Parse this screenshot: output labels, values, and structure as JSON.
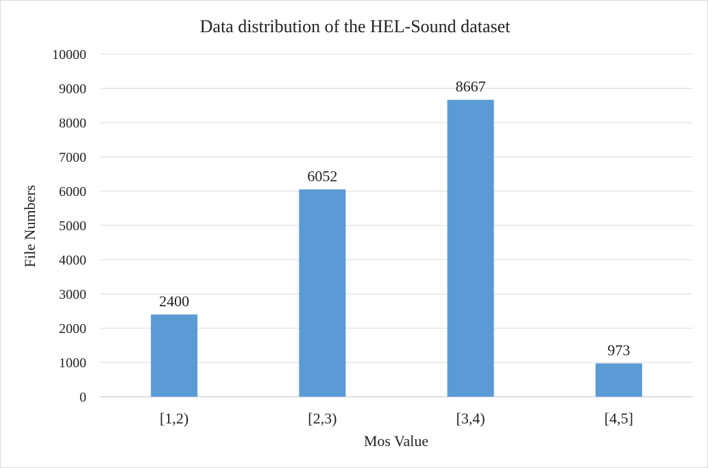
{
  "chart_data": {
    "type": "bar",
    "title": "Data distribution  of the HEL-Sound dataset",
    "xlabel": "Mos Value",
    "ylabel": "File Numbers",
    "categories": [
      "[1,2)",
      "[2,3)",
      "[3,4)",
      "[4,5]"
    ],
    "values": [
      2400,
      6052,
      8667,
      973
    ],
    "data_labels": [
      "2400",
      "6052",
      "8667",
      "973"
    ],
    "ylim": [
      0,
      10000
    ],
    "yticks": [
      0,
      1000,
      2000,
      3000,
      4000,
      5000,
      6000,
      7000,
      8000,
      9000,
      10000
    ],
    "ytick_labels": [
      "0",
      "1000",
      "2000",
      "3000",
      "4000",
      "5000",
      "6000",
      "7000",
      "8000",
      "9000",
      "10000"
    ],
    "grid": true,
    "legend": "none",
    "bar_color": "#5b9bd5"
  }
}
